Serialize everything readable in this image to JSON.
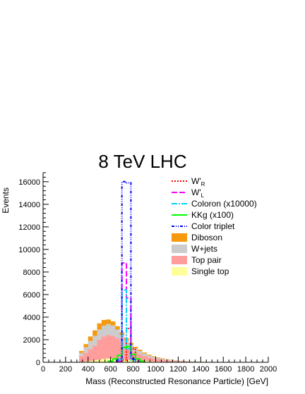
{
  "chart_data": {
    "type": "bar",
    "title": "8 TeV LHC",
    "xlabel": "Mass (Reconstructed Resonance Particle) [GeV]",
    "ylabel": "Events",
    "xlim": [
      0,
      2000
    ],
    "ylim": [
      0,
      16800
    ],
    "xticks": [
      0,
      200,
      400,
      600,
      800,
      1000,
      1200,
      1400,
      1600,
      1800,
      2000
    ],
    "yticks": [
      0,
      2000,
      4000,
      6000,
      8000,
      10000,
      12000,
      14000,
      16000
    ],
    "bin_width": 40,
    "stack": {
      "x": [
        340,
        380,
        420,
        460,
        500,
        540,
        580,
        620,
        660,
        700,
        740,
        780,
        820,
        860,
        900,
        940,
        980,
        1020,
        1060,
        1100,
        1140,
        1180,
        1220,
        1260,
        1300,
        1340,
        1380,
        1420,
        1460,
        1500,
        1540,
        1580,
        1620,
        1660,
        1700,
        1740,
        1780,
        1820,
        1860,
        1900,
        1940,
        1980
      ],
      "series": [
        {
          "name": "Single top",
          "color": "#ffff99",
          "values": [
            40,
            80,
            120,
            180,
            250,
            300,
            330,
            340,
            320,
            290,
            250,
            210,
            170,
            140,
            110,
            90,
            70,
            55,
            45,
            35,
            30,
            25,
            20,
            16,
            13,
            10,
            8,
            6,
            5,
            4,
            3,
            3,
            2,
            2,
            1,
            1,
            1,
            1,
            0,
            0,
            0,
            0
          ]
        },
        {
          "name": "Top pair",
          "color": "#ff9c9c",
          "values": [
            500,
            750,
            1050,
            1300,
            1750,
            2000,
            2100,
            2000,
            1800,
            1500,
            1200,
            950,
            750,
            600,
            450,
            350,
            280,
            220,
            170,
            130,
            100,
            80,
            60,
            45,
            35,
            27,
            20,
            15,
            11,
            8,
            6,
            5,
            4,
            3,
            2,
            2,
            1,
            1,
            1,
            0,
            0,
            0
          ]
        },
        {
          "name": "W+jets",
          "color": "#cccccc",
          "values": [
            300,
            500,
            720,
            850,
            900,
            950,
            960,
            920,
            780,
            620,
            500,
            400,
            320,
            260,
            210,
            170,
            140,
            115,
            95,
            78,
            64,
            52,
            42,
            34,
            27,
            22,
            18,
            14,
            11,
            9,
            7,
            6,
            5,
            4,
            3,
            2,
            2,
            1,
            1,
            1,
            0,
            0
          ]
        },
        {
          "name": "Diboson",
          "color": "#f5990f",
          "values": [
            160,
            280,
            400,
            500,
            550,
            500,
            400,
            360,
            300,
            240,
            200,
            160,
            130,
            110,
            90,
            70,
            55,
            45,
            38,
            30,
            24,
            20,
            16,
            13,
            10,
            8,
            6,
            5,
            4,
            3,
            2,
            2,
            1,
            1,
            1,
            0,
            0,
            0,
            0,
            0,
            0,
            0
          ]
        }
      ]
    },
    "signals": [
      {
        "name": "W'_R",
        "color": "#ff0000",
        "dash": "2,2",
        "x": [
          720,
          760,
          800,
          840
        ],
        "values": [
          200,
          3000,
          1200,
          100
        ]
      },
      {
        "name": "W'_L",
        "color": "#ff00ff",
        "dash": "8,3",
        "x": [
          680,
          720,
          760,
          800,
          840
        ],
        "values": [
          100,
          8800,
          5700,
          600,
          100
        ]
      },
      {
        "name": "Coloron (x10000)",
        "color": "#00d2ff",
        "dash": "8,2,2,2",
        "x": [
          680,
          720,
          760,
          800
        ],
        "values": [
          200,
          6400,
          1200,
          200
        ]
      },
      {
        "name": "KKg (x100)",
        "color": "#00ff00",
        "dash": "",
        "x": [
          600,
          640,
          680,
          720,
          760,
          800,
          840,
          880
        ],
        "values": [
          100,
          300,
          600,
          1300,
          1400,
          700,
          300,
          100
        ]
      },
      {
        "name": "Color triplet",
        "color": "#0000ff",
        "dash": "4,2,1,2,1,2",
        "x": [
          680,
          720,
          760,
          800
        ],
        "values": [
          300,
          16000,
          15900,
          300
        ]
      }
    ],
    "legend": {
      "placement": "top-right",
      "entries": [
        {
          "label": "W'",
          "sub": "R",
          "kind": "line",
          "color": "#ff0000",
          "dash": "2,2"
        },
        {
          "label": "W'",
          "sub": "L",
          "kind": "line",
          "color": "#ff00ff",
          "dash": "8,3"
        },
        {
          "label": "Coloron (x10000)",
          "sub": "",
          "kind": "line",
          "color": "#00d2ff",
          "dash": "8,2,2,2"
        },
        {
          "label": "KKg (x100)",
          "sub": "",
          "kind": "line",
          "color": "#00ff00",
          "dash": ""
        },
        {
          "label": "Color triplet",
          "sub": "",
          "kind": "line",
          "color": "#0000ff",
          "dash": "4,2,1,2,1,2"
        },
        {
          "label": "Diboson",
          "sub": "",
          "kind": "fill",
          "color": "#f5990f"
        },
        {
          "label": "W+jets",
          "sub": "",
          "kind": "fill",
          "color": "#cccccc"
        },
        {
          "label": "Top pair",
          "sub": "",
          "kind": "fill",
          "color": "#ff9c9c"
        },
        {
          "label": "Single top",
          "sub": "",
          "kind": "fill",
          "color": "#ffff99"
        }
      ]
    }
  }
}
